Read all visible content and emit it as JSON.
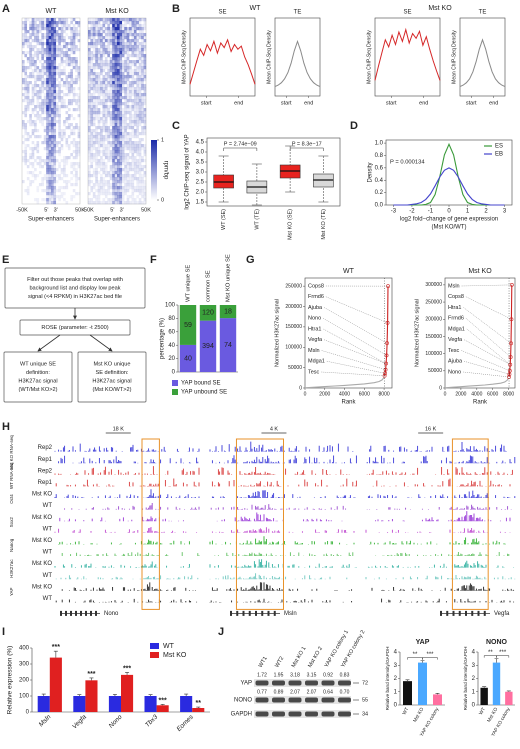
{
  "figure": {
    "letters": [
      "A",
      "B",
      "C",
      "D",
      "E",
      "F",
      "G",
      "H",
      "I",
      "J"
    ],
    "A": {
      "titles": [
        "WT",
        "Mst KO"
      ],
      "x_tick_labels": [
        "-50K",
        "5'",
        "3'",
        "50K"
      ],
      "xlabel": "Super-enhancers",
      "colorbar_label": "rpm/bp",
      "colorbar_ticks": [
        0,
        1
      ]
    },
    "B": {
      "groups": [
        "WT",
        "Mst KO"
      ]
    },
    "E": {
      "boxes": [
        [
          "Filter out those peaks that overlap with",
          "background list and display low peak",
          "signal (<4 RPKM) in H3K27ac bed file"
        ],
        [
          "ROSE (parameter: -t 2500)"
        ],
        [
          "WT unique SE",
          "definition:",
          "H3K27ac signal",
          "(WT/Mst KO>2)"
        ],
        [
          "Mst KO unique",
          "SE definition:",
          "H3K27ac signal",
          "(Mst KO/WT>2)"
        ]
      ]
    },
    "H": {
      "groups": [
        "Mst KO RNA-seq",
        "WT RNA-seq",
        "Oct4",
        "Sox2",
        "Nanog",
        "H3K27ac",
        "YAP"
      ],
      "rows": [
        "Rep2",
        "Rep1",
        "Rep2",
        "Rep1",
        "Mst KO",
        "WT",
        "Mst KO",
        "WT",
        "Mst KO",
        "WT",
        "Mst KO",
        "WT",
        "Mst KO",
        "WT"
      ],
      "row_colors": [
        "#3a3ad8",
        "#3a3ad8",
        "#d83a3a",
        "#d83a3a",
        "#3a3ad8",
        "#9a4ad0",
        "#9a3ad8",
        "#c04ad0",
        "#30b030",
        "#60c060",
        "#30b0a0",
        "#70c8c0",
        "#222222",
        "#222222"
      ],
      "scale_bars": [
        "18 K",
        "4 K",
        "16 K"
      ],
      "genes": [
        "Nono",
        "Msln",
        "Vegfa"
      ]
    },
    "J": {
      "lanes": [
        "WT1",
        "WT2",
        "Mst KO 1",
        "Mst KO 2",
        "YAP KO colony 1",
        "YAP KO colony 2"
      ],
      "rows": [
        "YAP",
        "NONO",
        "GAPDH"
      ],
      "quant": [
        [
          "1.72",
          "1.95",
          "3.18",
          "3.15",
          "0.92",
          "0.83"
        ],
        [
          "0.77",
          "0.89",
          "2.07",
          "2.07",
          "0.64",
          "0.70"
        ]
      ],
      "markers": [
        "72",
        "55",
        "34"
      ]
    }
  },
  "chart_data": [
    {
      "type": "profile",
      "title": "SE",
      "ylabel": "Mean ChIP-Seq Density",
      "x_tick_labels": [
        "start",
        "end"
      ],
      "color": "#d62728",
      "ylim": [
        0,
        1
      ],
      "values": [
        0.15,
        0.3,
        0.45,
        0.6,
        0.52,
        0.66,
        0.58,
        0.7,
        0.55,
        0.68,
        0.62,
        0.72,
        0.57,
        0.66,
        0.6,
        0.64,
        0.5,
        0.4,
        0.28,
        0.15
      ]
    },
    {
      "type": "profile",
      "title": "TE",
      "ylabel": "Mean ChIP-Seq Density",
      "x_tick_labels": [
        "start",
        "end"
      ],
      "color": "#8a8a8a",
      "ylim": [
        0,
        1
      ],
      "values": [
        0.12,
        0.14,
        0.17,
        0.22,
        0.3,
        0.42,
        0.58,
        0.7,
        0.58,
        0.42,
        0.3,
        0.22,
        0.17,
        0.14,
        0.12
      ]
    },
    {
      "type": "profile",
      "title": "SE",
      "ylabel": "Mean ChIP-Seq Density",
      "x_tick_labels": [
        "start",
        "end"
      ],
      "color": "#d62728",
      "ylim": [
        0,
        1
      ],
      "values": [
        0.2,
        0.38,
        0.55,
        0.72,
        0.63,
        0.78,
        0.66,
        0.82,
        0.7,
        0.85,
        0.68,
        0.8,
        0.74,
        0.83,
        0.65,
        0.76,
        0.6,
        0.45,
        0.32,
        0.2
      ]
    },
    {
      "type": "profile",
      "title": "TE",
      "ylabel": "Mean ChIP-Seq Density",
      "x_tick_labels": [
        "start",
        "end"
      ],
      "color": "#8a8a8a",
      "ylim": [
        0,
        1
      ],
      "values": [
        0.12,
        0.14,
        0.17,
        0.22,
        0.31,
        0.44,
        0.6,
        0.72,
        0.6,
        0.44,
        0.31,
        0.22,
        0.17,
        0.14,
        0.12
      ]
    },
    {
      "type": "box",
      "ylabel": "log2 ChIP-seq signal of YAP",
      "categories": [
        "WT (SE)",
        "WT (TE)",
        "Mst KO (SE)",
        "Mst KO (TE)"
      ],
      "colors": [
        "#e8231f",
        "#d9d9d9",
        "#e8231f",
        "#d9d9d9"
      ],
      "boxes": [
        {
          "min": 1.5,
          "q1": 2.2,
          "median": 2.5,
          "q3": 2.85,
          "max": 3.8
        },
        {
          "min": 1.35,
          "q1": 1.95,
          "median": 2.25,
          "q3": 2.55,
          "max": 3.4
        },
        {
          "min": 2.0,
          "q1": 2.7,
          "median": 3.05,
          "q3": 3.35,
          "max": 4.3
        },
        {
          "min": 1.5,
          "q1": 2.25,
          "median": 2.6,
          "q3": 2.9,
          "max": 3.8
        }
      ],
      "ylim": [
        1.3,
        4.7
      ],
      "yticks": [
        1.5,
        {
          "value": 2,
          "label": "2.0"
        },
        2.5,
        {
          "value": 3,
          "label": "3.0"
        },
        3.5,
        {
          "value": 4,
          "label": "4.0"
        },
        4.5
      ],
      "annotations": [
        "P = 2.74e−09",
        "P = 8.3e−17"
      ]
    },
    {
      "type": "line",
      "ylabel": "Density",
      "xlabel": [
        "log2 fold−change of gene expression",
        "(Mst KO/WT)"
      ],
      "x": [
        -3,
        -2.75,
        -2.5,
        -2.25,
        -2,
        -1.75,
        -1.5,
        -1.25,
        -1,
        -0.75,
        -0.5,
        -0.25,
        0,
        0.25,
        0.5,
        0.75,
        1,
        1.25,
        1.5,
        1.75,
        2,
        2.25,
        2.5,
        2.75,
        3
      ],
      "series": [
        {
          "name": "ES",
          "color": "#3a9a3a",
          "values": [
            0,
            0,
            0,
            0,
            0,
            0,
            0,
            0.01,
            0.04,
            0.17,
            0.45,
            0.81,
            0.98,
            0.81,
            0.45,
            0.17,
            0.04,
            0.01,
            0,
            0,
            0,
            0,
            0,
            0,
            0
          ]
        },
        {
          "name": "EB",
          "color": "#4444cc",
          "values": [
            0,
            0,
            0,
            0,
            0.01,
            0.02,
            0.04,
            0.09,
            0.18,
            0.31,
            0.45,
            0.56,
            0.6,
            0.56,
            0.45,
            0.31,
            0.18,
            0.09,
            0.04,
            0.02,
            0.01,
            0,
            0,
            0,
            0
          ]
        }
      ],
      "xlim": [
        -3.4,
        3.4
      ],
      "xticks": [
        -3,
        -2,
        -1,
        0,
        1,
        2,
        3
      ],
      "ylim": [
        0,
        1.05
      ],
      "yticks": [
        {
          "value": 0,
          "label": "0.0"
        },
        0.2,
        0.4,
        0.6,
        0.8,
        {
          "value": 1,
          "label": "1.0"
        }
      ],
      "legend": "top-right",
      "annotations": [
        "P = 0.000134"
      ]
    },
    {
      "type": "bar",
      "stacked": "percent",
      "ylabel": "percentage (%)",
      "categories": [
        "WT unique SE",
        "common SE",
        "Mst KO unique SE"
      ],
      "series": [
        {
          "name": "YAP bound SE",
          "color": "#6a5ae0",
          "values": [
            40,
            394,
            74
          ]
        },
        {
          "name": "YAP unbound SE",
          "color": "#3aa03a",
          "values": [
            59,
            120,
            18
          ]
        }
      ],
      "ylim": [
        0,
        100
      ],
      "yticks": [
        0,
        20,
        40,
        60,
        80,
        100
      ]
    },
    {
      "type": "line",
      "title": "WT",
      "ylabel": "Normalized H3K27ac signal",
      "xlabel": [
        "Rank"
      ],
      "series": [
        {
          "color": "#aaaaaa",
          "x": [
            0,
            1000,
            2000,
            3000,
            4000,
            5000,
            6000,
            7000,
            7500,
            7800,
            8000
          ],
          "values": [
            500,
            2000,
            3500,
            5000,
            6500,
            8000,
            10000,
            13000,
            16000,
            20000,
            26000
          ]
        },
        {
          "color": "#cc2222",
          "marker": "open-circle",
          "x": [
            8050,
            8100,
            8150,
            8200,
            8250,
            8300,
            8350,
            8400
          ],
          "values": [
            30000,
            36000,
            45000,
            60000,
            80000,
            110000,
            160000,
            250000
          ]
        }
      ],
      "xlim": [
        0,
        8800
      ],
      "xticks": [
        0,
        2000,
        4000,
        6000,
        8000
      ],
      "ylim": [
        0,
        270000
      ],
      "yticks": [
        0,
        50000,
        100000,
        150000,
        200000,
        250000
      ],
      "annotations": [
        "Cops8",
        "Frmd6",
        "Ajuba",
        "Nono",
        "Htra1",
        "Vegfa",
        "Msln",
        "Mdga1",
        "Tesc"
      ]
    },
    {
      "type": "line",
      "title": "Mst KO",
      "ylabel": "Normalized H3K27ac signal",
      "xlabel": [
        "Rank"
      ],
      "series": [
        {
          "color": "#aaaaaa",
          "x": [
            0,
            1000,
            2000,
            3000,
            4000,
            5000,
            6000,
            7000,
            7500,
            7800,
            8000
          ],
          "values": [
            600,
            2200,
            3800,
            5400,
            7000,
            8800,
            11000,
            14000,
            17500,
            22000,
            28000
          ]
        },
        {
          "color": "#cc2222",
          "marker": "open-circle",
          "x": [
            8050,
            8100,
            8150,
            8200,
            8250,
            8300,
            8350,
            8400
          ],
          "values": [
            32000,
            40000,
            50000,
            68000,
            90000,
            130000,
            200000,
            300000
          ]
        }
      ],
      "xlim": [
        0,
        8800
      ],
      "xticks": [
        0,
        2000,
        4000,
        6000,
        8000
      ],
      "ylim": [
        0,
        320000
      ],
      "yticks": [
        0,
        50000,
        100000,
        150000,
        200000,
        250000,
        300000
      ],
      "annotations": [
        "Msln",
        "Cops8",
        "Htra1",
        "Frmd6",
        "Mdga1",
        "Vegfa",
        "Tesc",
        "Ajuba",
        "Nono"
      ]
    },
    {
      "type": "bar",
      "ylabel": "Relative expression (%)",
      "categories": [
        "Msln",
        "Vegfa",
        "Nono",
        "Tbx3",
        "Eomes"
      ],
      "series": [
        {
          "name": "WT",
          "color": "#2a2ae0",
          "values": [
            100,
            100,
            100,
            100,
            100
          ],
          "errors": [
            12,
            8,
            10,
            8,
            12
          ]
        },
        {
          "name": "Mst KO",
          "color": "#e02020",
          "values": [
            340,
            198,
            232,
            42,
            25
          ],
          "errors": [
            40,
            15,
            15,
            5,
            6
          ],
          "annotations": [
            "***",
            "***",
            "***",
            "***",
            "**"
          ]
        }
      ],
      "ylim": [
        0,
        400
      ],
      "yticks": [
        0,
        100,
        200,
        300,
        400
      ],
      "legend": "top-right"
    },
    {
      "type": "bar",
      "title": "YAP",
      "ylabel": "Relative band intensity/GAPDH",
      "categories": [
        "WT",
        "Mst KO",
        "YAP KO colony"
      ],
      "colors": [
        "#111111",
        "#4aa8ff",
        "#ff6fa0"
      ],
      "values": [
        1.8,
        3.2,
        0.8
      ],
      "errors": [
        0.1,
        0.15,
        0.08
      ],
      "ylim": [
        0,
        4
      ],
      "yticks": [
        0,
        1,
        2,
        3,
        4
      ],
      "annotations": [
        "**",
        "***"
      ]
    },
    {
      "type": "bar",
      "title": "NONO",
      "ylabel": "Relative band intensity/GAPDH",
      "categories": [
        "WT",
        "Mst KO",
        "YAP KO colony"
      ],
      "colors": [
        "#111111",
        "#4aa8ff",
        "#ff6fa0"
      ],
      "values": [
        1.3,
        3.2,
        1.0
      ],
      "errors": [
        0.08,
        0.3,
        0.06
      ],
      "ylim": [
        0,
        4
      ],
      "yticks": [
        0,
        1,
        2,
        3,
        4
      ],
      "annotations": [
        "**",
        "***"
      ]
    }
  ]
}
